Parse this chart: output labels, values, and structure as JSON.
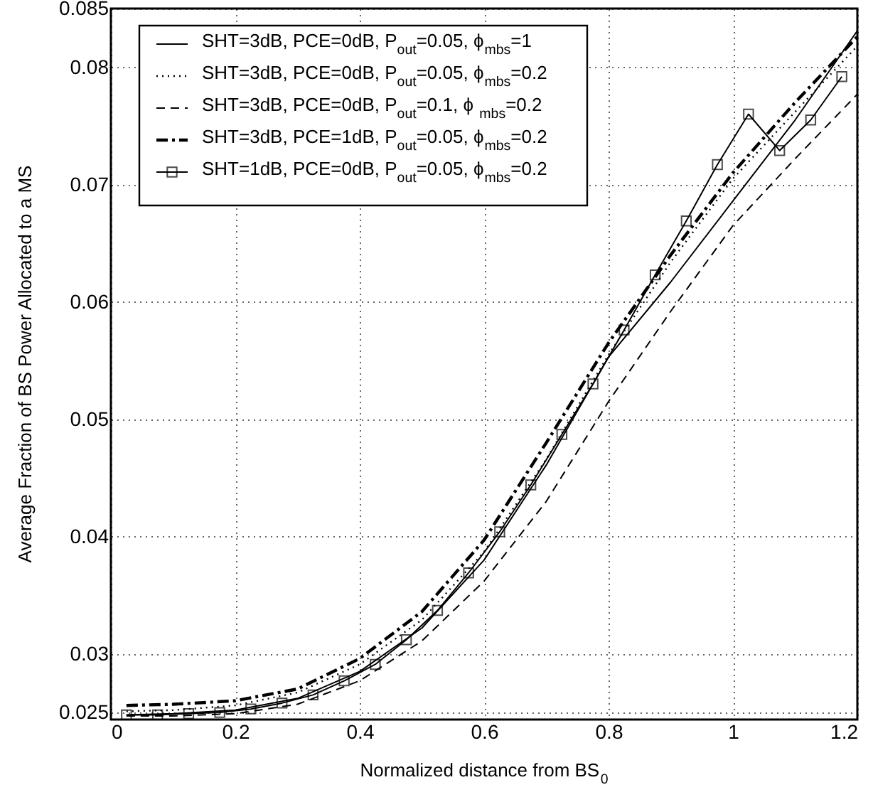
{
  "chart_data": {
    "type": "line",
    "xlabel": "Normalized distance from BS$_{0}$",
    "ylabel": "Average Fraction of BS Power Allocated to a MS",
    "xlim": [
      0,
      1.2
    ],
    "xticks": [
      0,
      0.2,
      0.4,
      0.6,
      0.8,
      1,
      1.2
    ],
    "ylim": [
      0.0244,
      0.085
    ],
    "yticks": [
      0.025,
      0.03,
      0.04,
      0.05,
      0.06,
      0.07,
      0.08,
      0.085
    ],
    "grid": true,
    "legend": "top left",
    "series": [
      {
        "name": "SHT=3dB, PCE=0dB, P$_{out}$=0.05, ϕ$_{mbs}$=1",
        "color": "#000000",
        "line_style": "solid",
        "marker": "none",
        "x": [
          0.025,
          0.1,
          0.2,
          0.3,
          0.4,
          0.5,
          0.6,
          0.7,
          0.8,
          0.9,
          1.0,
          1.1,
          1.2
        ],
        "values": [
          0.0248,
          0.0249,
          0.0252,
          0.0262,
          0.0285,
          0.0322,
          0.038,
          0.0461,
          0.0553,
          0.0617,
          0.0686,
          0.0755,
          0.0831
        ]
      },
      {
        "name": "SHT=3dB, PCE=0dB, P$_{out}$=0.05, ϕ$_{mbs}$=0.2",
        "color": "#000000",
        "line_style": "dotted",
        "marker": "none",
        "x": [
          0.025,
          0.1,
          0.2,
          0.3,
          0.4,
          0.5,
          0.6,
          0.7,
          0.8,
          0.9,
          1.0,
          1.1,
          1.2
        ],
        "values": [
          0.0251,
          0.0252,
          0.0256,
          0.0267,
          0.0291,
          0.0329,
          0.0387,
          0.0466,
          0.0555,
          0.0634,
          0.0705,
          0.0762,
          0.0818
        ]
      },
      {
        "name": "SHT=3dB, PCE=0dB, P$_{out}$=0.1,  ϕ$_{mbs}$=0.2",
        "color": "#000000",
        "line_style": "dashed",
        "marker": "none",
        "x": [
          0.025,
          0.1,
          0.2,
          0.3,
          0.4,
          0.5,
          0.6,
          0.7,
          0.8,
          0.9,
          1.0,
          1.1,
          1.2
        ],
        "values": [
          0.0247,
          0.0247,
          0.0249,
          0.0257,
          0.0277,
          0.0311,
          0.0362,
          0.043,
          0.0515,
          0.0592,
          0.0665,
          0.0722,
          0.0777
        ]
      },
      {
        "name": "SHT=3dB, PCE=1dB, P$_{out}$=0.05, ϕ$_{mbs}$=0.2",
        "color": "#000000",
        "line_style": "dashdot",
        "marker": "none",
        "x": [
          0.025,
          0.1,
          0.2,
          0.3,
          0.4,
          0.5,
          0.6,
          0.7,
          0.8,
          0.9,
          1.0,
          1.1,
          1.2
        ],
        "values": [
          0.0256,
          0.0257,
          0.026,
          0.027,
          0.0296,
          0.0336,
          0.0397,
          0.048,
          0.0565,
          0.064,
          0.071,
          0.077,
          0.0826
        ]
      },
      {
        "name": "SHT=1dB, PCE=0dB, P$_{out}$=0.05, ϕ$_{mbs}$=0.2",
        "color": "#000000",
        "line_style": "solid",
        "marker": "square",
        "x": [
          0.025,
          0.075,
          0.125,
          0.175,
          0.225,
          0.275,
          0.325,
          0.375,
          0.425,
          0.475,
          0.525,
          0.575,
          0.625,
          0.675,
          0.725,
          0.775,
          0.825,
          0.875,
          0.925,
          0.975,
          1.025,
          1.075,
          1.125,
          1.175
        ],
        "values": [
          0.0248,
          0.0248,
          0.0249,
          0.025,
          0.0253,
          0.0258,
          0.0265,
          0.0277,
          0.0291,
          0.0312,
          0.0337,
          0.0369,
          0.0404,
          0.0444,
          0.0487,
          0.053,
          0.0576,
          0.0623,
          0.0669,
          0.0717,
          0.076,
          0.0729,
          0.0755,
          0.0792
        ]
      }
    ]
  }
}
